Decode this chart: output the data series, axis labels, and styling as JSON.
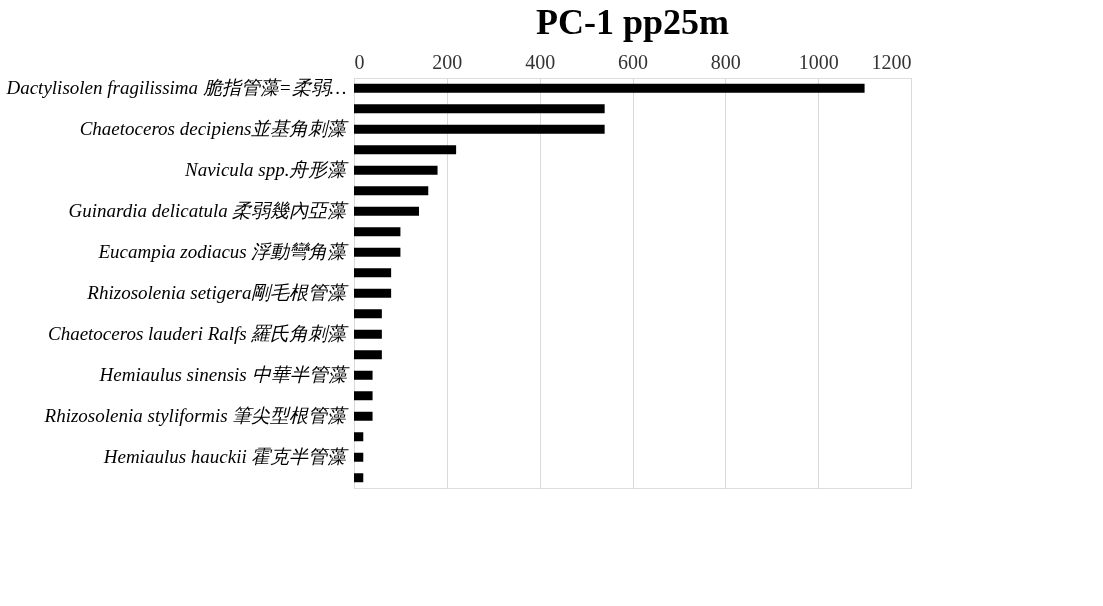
{
  "chart_data": {
    "type": "bar",
    "orientation": "horizontal",
    "title": "PC-1    pp25m",
    "categories": [
      "Dactylisolen fragilissima 脆指管藻=柔弱…",
      null,
      "Chaetoceros decipiens並基角刺藻",
      null,
      "Navicula spp.舟形藻",
      null,
      "Guinardia delicatula 柔弱幾內亞藻",
      null,
      "Eucampia zodiacus  浮動彎角藻",
      null,
      "Rhizosolenia setigera剛毛根管藻",
      null,
      "Chaetoceros lauderi Ralfs 羅氏角刺藻",
      null,
      "Hemiaulus sinensis 中華半管藻",
      null,
      "Rhizosolenia styliformis 筆尖型根管藻",
      null,
      "Hemiaulus hauckii 霍克半管藻",
      null
    ],
    "values": [
      1100,
      540,
      540,
      220,
      180,
      160,
      140,
      100,
      100,
      80,
      80,
      60,
      60,
      60,
      40,
      40,
      40,
      20,
      20,
      20
    ],
    "color": "#000000",
    "xlim": [
      0,
      1200
    ],
    "xticks": [
      0,
      200,
      400,
      600,
      800,
      1000,
      1200
    ],
    "grid": "x"
  }
}
